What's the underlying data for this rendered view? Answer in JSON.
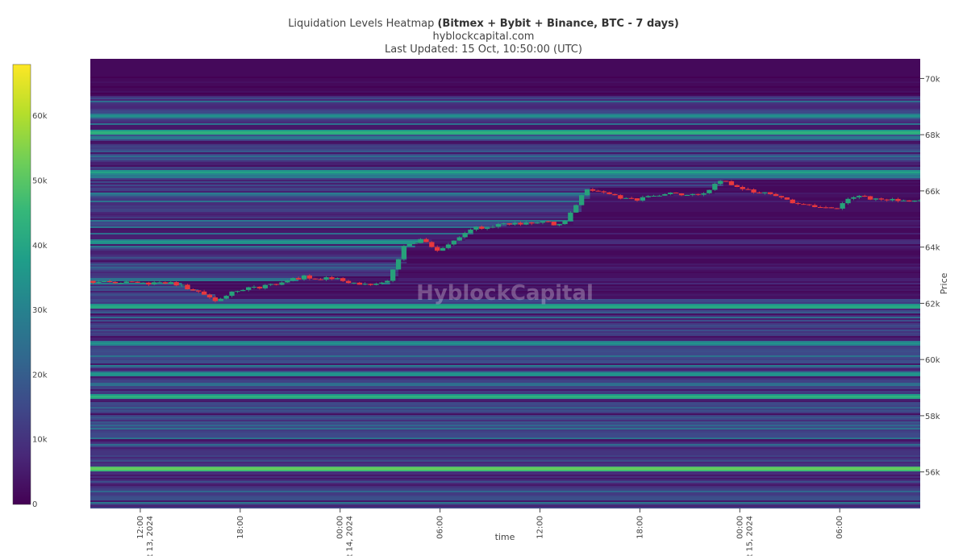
{
  "header": {
    "title_prefix": "Liquidation Levels Heatmap ",
    "title_bold": "(Bitmex + Bybit + Binance, BTC - 7 days)",
    "subtitle": "hyblockcapital.com",
    "updated": "Last Updated: 15 Oct, 10:50:00 (UTC)"
  },
  "watermark": "HyblockCapital",
  "chart_data": {
    "type": "heatmap",
    "xlabel": "time",
    "ylabel": "Price",
    "x_range": [
      "2024-10-13 09:00",
      "2024-10-15 10:50"
    ],
    "ylim": [
      54700,
      70700
    ],
    "x_ticks": [
      {
        "t": "2024-10-13 12:00",
        "l1": "12:00",
        "l2": "ct 13, 2024"
      },
      {
        "t": "2024-10-13 18:00",
        "l1": "18:00",
        "l2": ""
      },
      {
        "t": "2024-10-14 00:00",
        "l1": "00:00",
        "l2": "ct 14, 2024"
      },
      {
        "t": "2024-10-14 06:00",
        "l1": "06:00",
        "l2": ""
      },
      {
        "t": "2024-10-14 12:00",
        "l1": "12:00",
        "l2": ""
      },
      {
        "t": "2024-10-14 18:00",
        "l1": "18:00",
        "l2": ""
      },
      {
        "t": "2024-10-15 00:00",
        "l1": "00:00",
        "l2": "ct 15, 2024"
      },
      {
        "t": "2024-10-15 06:00",
        "l1": "06:00",
        "l2": ""
      }
    ],
    "y_ticks": [
      {
        "v": 56000,
        "label": "56k"
      },
      {
        "v": 58000,
        "label": "58k"
      },
      {
        "v": 60000,
        "label": "60k"
      },
      {
        "v": 62000,
        "label": "62k"
      },
      {
        "v": 64000,
        "label": "64k"
      },
      {
        "v": 66000,
        "label": "66k"
      },
      {
        "v": 68000,
        "label": "68k"
      },
      {
        "v": 70000,
        "label": "70k"
      }
    ],
    "colorbar": {
      "min": 0,
      "max": 68000,
      "ticks": [
        {
          "v": 0,
          "label": "0"
        },
        {
          "v": 10000,
          "label": "10k"
        },
        {
          "v": 20000,
          "label": "20k"
        },
        {
          "v": 30000,
          "label": "30k"
        },
        {
          "v": 40000,
          "label": "40k"
        },
        {
          "v": 50000,
          "label": "50k"
        },
        {
          "v": 60000,
          "label": "60k"
        }
      ],
      "colorscale": [
        "#440154",
        "#482878",
        "#3e4989",
        "#31688e",
        "#26828e",
        "#1f9e89",
        "#35b779",
        "#6ece58",
        "#b5de2b",
        "#fde725"
      ]
    },
    "liquidation_bands": [
      {
        "price": 56150,
        "value": 55000
      },
      {
        "price": 58700,
        "value": 45000
      },
      {
        "price": 59500,
        "value": 38000
      },
      {
        "price": 60600,
        "value": 36000
      },
      {
        "price": 61900,
        "value": 44000
      },
      {
        "price": 64200,
        "value": 38000
      },
      {
        "price": 66700,
        "value": 40000
      },
      {
        "price": 68100,
        "value": 46000
      },
      {
        "price": 68700,
        "value": 35000
      }
    ],
    "price_series": [
      {
        "t": "2024-10-13 09:00",
        "p": 62800
      },
      {
        "t": "2024-10-13 12:00",
        "p": 62700
      },
      {
        "t": "2024-10-13 14:00",
        "p": 62750
      },
      {
        "t": "2024-10-13 16:00",
        "p": 62300
      },
      {
        "t": "2024-10-13 16:40",
        "p": 62100
      },
      {
        "t": "2024-10-13 18:00",
        "p": 62450
      },
      {
        "t": "2024-10-13 20:00",
        "p": 62650
      },
      {
        "t": "2024-10-13 22:00",
        "p": 62950
      },
      {
        "t": "2024-10-14 00:00",
        "p": 62850
      },
      {
        "t": "2024-10-14 02:00",
        "p": 62600
      },
      {
        "t": "2024-10-14 03:00",
        "p": 62800
      },
      {
        "t": "2024-10-14 04:00",
        "p": 64000
      },
      {
        "t": "2024-10-14 05:00",
        "p": 64300
      },
      {
        "t": "2024-10-14 06:00",
        "p": 63900
      },
      {
        "t": "2024-10-14 07:00",
        "p": 64200
      },
      {
        "t": "2024-10-14 08:00",
        "p": 64650
      },
      {
        "t": "2024-10-14 10:00",
        "p": 64800
      },
      {
        "t": "2024-10-14 12:00",
        "p": 64900
      },
      {
        "t": "2024-10-14 13:30",
        "p": 64800
      },
      {
        "t": "2024-10-14 14:30",
        "p": 65700
      },
      {
        "t": "2024-10-14 15:00",
        "p": 66100
      },
      {
        "t": "2024-10-14 16:30",
        "p": 65800
      },
      {
        "t": "2024-10-14 18:00",
        "p": 65700
      },
      {
        "t": "2024-10-14 20:00",
        "p": 65900
      },
      {
        "t": "2024-10-14 22:00",
        "p": 65900
      },
      {
        "t": "2024-10-14 23:00",
        "p": 66400
      },
      {
        "t": "2024-10-15 00:00",
        "p": 66100
      },
      {
        "t": "2024-10-15 02:00",
        "p": 65900
      },
      {
        "t": "2024-10-15 03:30",
        "p": 65500
      },
      {
        "t": "2024-10-15 05:00",
        "p": 65400
      },
      {
        "t": "2024-10-15 06:00",
        "p": 65400
      },
      {
        "t": "2024-10-15 07:00",
        "p": 65800
      },
      {
        "t": "2024-10-15 09:00",
        "p": 65700
      },
      {
        "t": "2024-10-15 10:50",
        "p": 65650
      }
    ]
  }
}
